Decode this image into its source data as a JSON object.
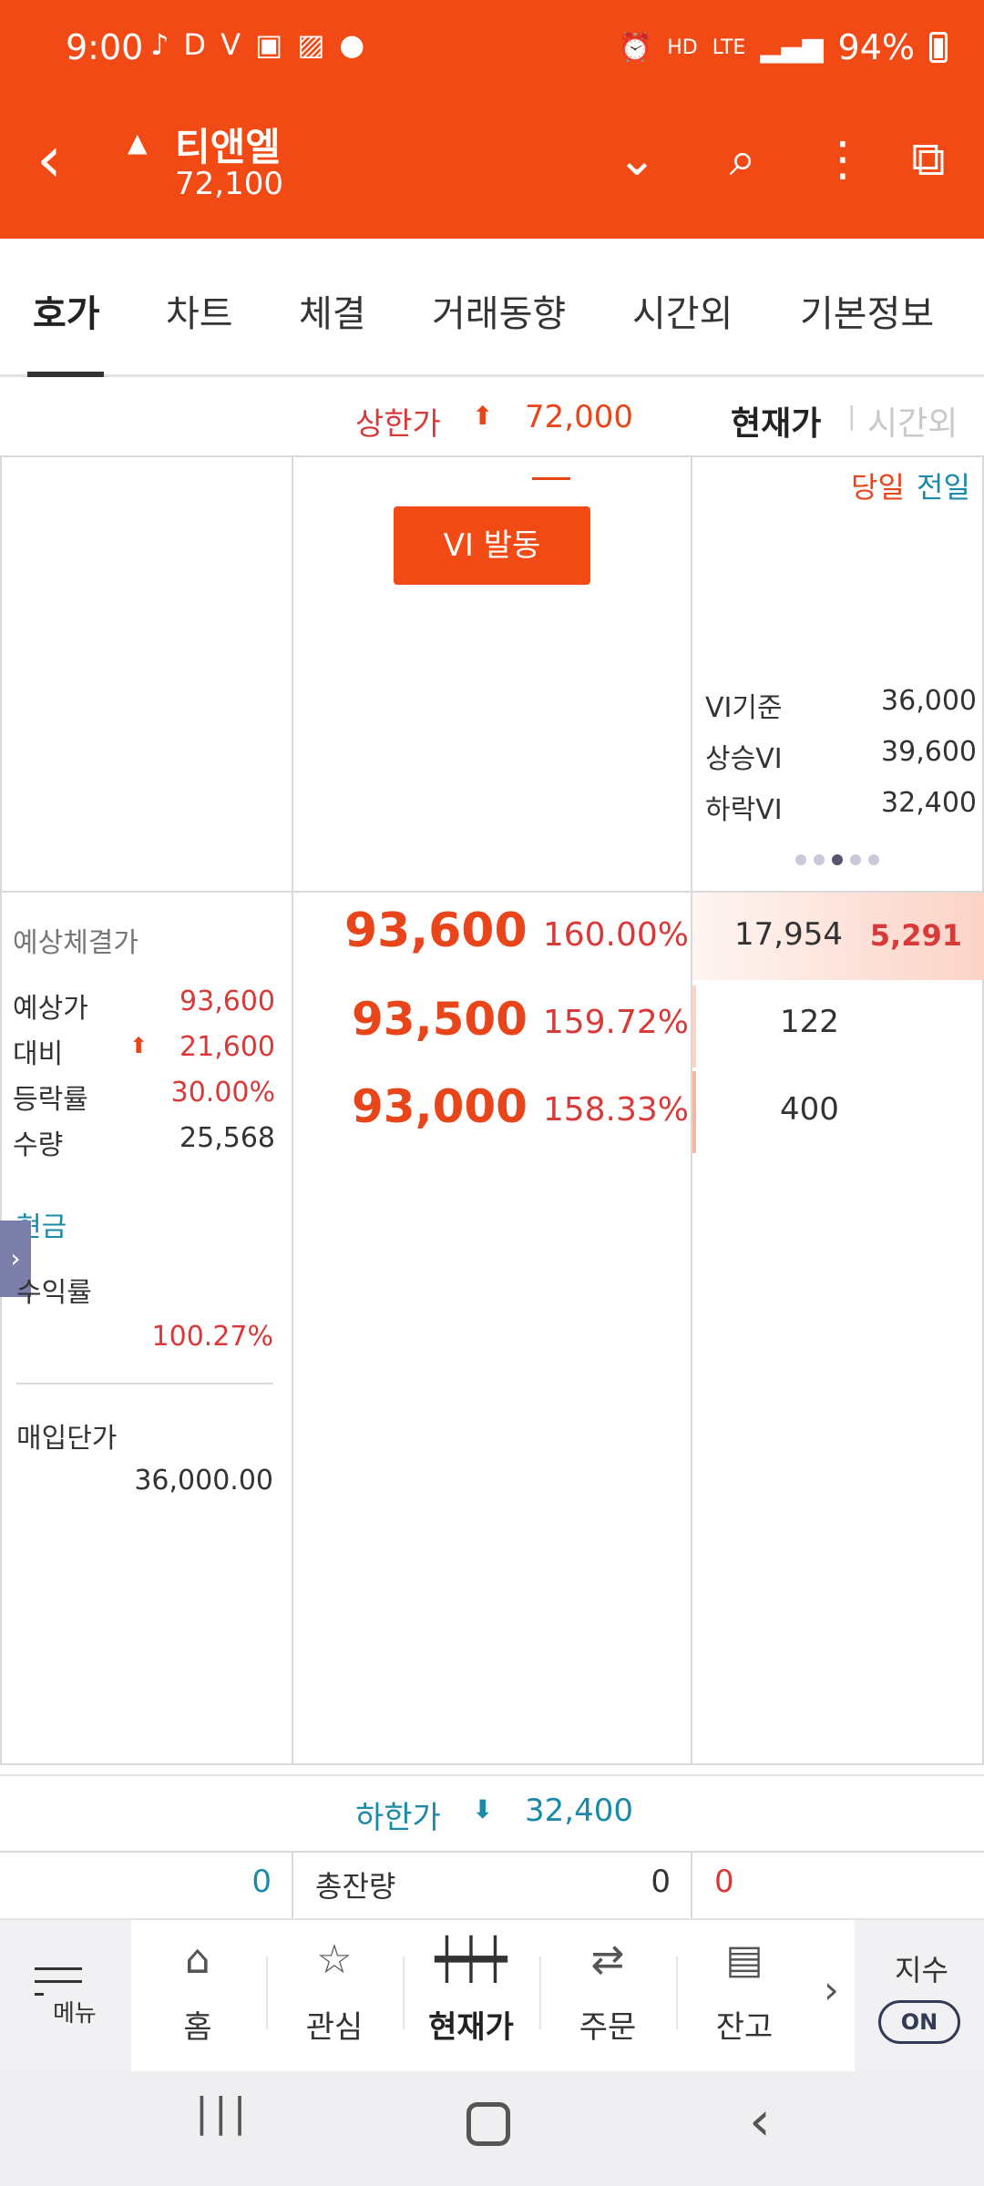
{
  "status_bar": {
    "time": "9:00",
    "icons": [
      "music-icon",
      "dex-icon",
      "v3-icon",
      "mstock-icon",
      "gallery-icon",
      "talk-icon"
    ],
    "right_icons": [
      "alarm-icon",
      "hd-voice-icon",
      "lte-icon",
      "signal-icon"
    ],
    "battery": "94%"
  },
  "header": {
    "stock_name": "티앤엘",
    "price": "72,100",
    "trend": "up",
    "accent": "#f24a14"
  },
  "tabs": [
    {
      "label": "호가",
      "active": true
    },
    {
      "label": "차트"
    },
    {
      "label": "체결"
    },
    {
      "label": "거래동향"
    },
    {
      "label": "시간외"
    },
    {
      "label": "기본정보"
    }
  ],
  "upper_limit": {
    "label": "상한가",
    "value": "72,000"
  },
  "price_mode": {
    "current": "현재가",
    "after_hours": "시간외"
  },
  "day_toggle": {
    "today": "당일",
    "prev": "전일"
  },
  "vi_button": "VI 발동",
  "vi_info": [
    {
      "label": "VI기준",
      "value": "36,000"
    },
    {
      "label": "상승VI",
      "value": "39,600"
    },
    {
      "label": "하락VI",
      "value": "32,400"
    }
  ],
  "expected": {
    "title": "예상체결가",
    "rows": [
      {
        "label": "예상가",
        "value": "93,600"
      },
      {
        "label": "대비",
        "value": "21,600"
      },
      {
        "label": "등락률",
        "value": "30.00%"
      },
      {
        "label": "수량",
        "value": "25,568"
      }
    ]
  },
  "orders": [
    {
      "price": "93,600",
      "rate": "160.00%",
      "qty": "17,954",
      "extra": "5,291"
    },
    {
      "price": "93,500",
      "rate": "159.72%",
      "qty": "122"
    },
    {
      "price": "93,000",
      "rate": "158.33%",
      "qty": "400"
    }
  ],
  "holding": {
    "cash_label": "현금",
    "yield_label": "수익률",
    "yield_value": "100.27%",
    "avg_label": "매입단가",
    "avg_value": "36,000.00"
  },
  "lower_limit": {
    "label": "하한가",
    "value": "32,400"
  },
  "totals": {
    "left": "0",
    "label": "총잔량",
    "mid": "0",
    "right": "0"
  },
  "bottom_nav": {
    "menu": "메뉴",
    "items": [
      {
        "label": "홈",
        "icon": "home-icon"
      },
      {
        "label": "관심",
        "icon": "star-icon"
      },
      {
        "label": "현재가",
        "icon": "candle-icon",
        "active": true
      },
      {
        "label": "주문",
        "icon": "swap-icon"
      },
      {
        "label": "잔고",
        "icon": "balance-icon"
      }
    ],
    "index_label": "지수",
    "index_toggle": "ON"
  }
}
